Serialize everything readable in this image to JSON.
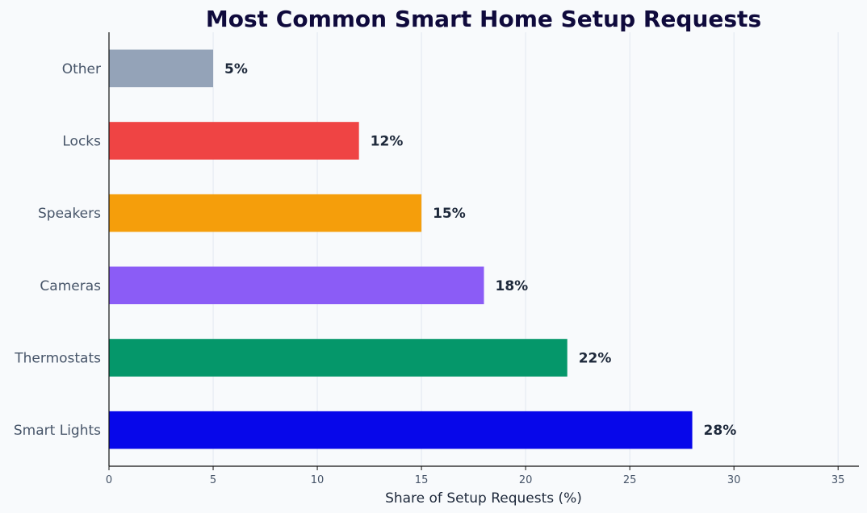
{
  "chart_data": {
    "type": "bar",
    "orientation": "horizontal",
    "title": "Most Common Smart Home Setup Requests",
    "xlabel": "Share of Setup Requests (%)",
    "ylabel": "",
    "xlim": [
      0,
      36
    ],
    "xticks": [
      0,
      5,
      10,
      15,
      20,
      25,
      30,
      35
    ],
    "grid": "vertical",
    "categories": [
      "Smart Lights",
      "Thermostats",
      "Cameras",
      "Speakers",
      "Locks",
      "Other"
    ],
    "values": [
      28,
      22,
      18,
      15,
      12,
      5
    ],
    "data_labels": [
      "28%",
      "22%",
      "18%",
      "15%",
      "12%",
      "5%"
    ],
    "colors": [
      "#0707ea",
      "#05976a",
      "#8b5cf6",
      "#f59e0b",
      "#ef4444",
      "#94a3b8"
    ]
  }
}
